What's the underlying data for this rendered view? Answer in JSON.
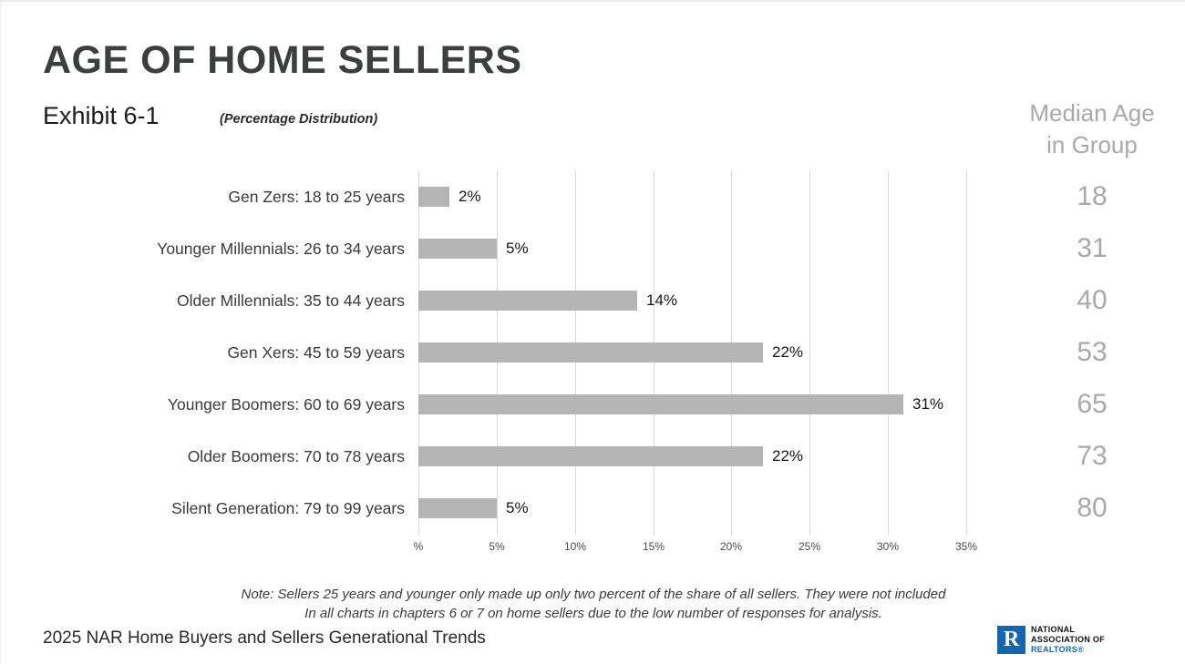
{
  "header": {
    "title": "AGE OF HOME SELLERS",
    "exhibit": "Exhibit 6-1",
    "subtitle": "(Percentage Distribution)"
  },
  "median_column": {
    "header_line1": "Median Age",
    "header_line2": "in Group"
  },
  "chart_data": {
    "type": "bar",
    "orientation": "horizontal",
    "title": "AGE OF HOME SELLERS",
    "xlabel": "",
    "ylabel": "",
    "categories": [
      "Gen Zers: 18 to 25 years",
      "Younger Millennials: 26 to 34 years",
      "Older Millennials: 35 to 44 years",
      "Gen Xers: 45 to 59 years",
      "Younger Boomers: 60 to 69 years",
      "Older Boomers: 70 to 78 years",
      "Silent Generation: 79 to 99 years"
    ],
    "values": [
      2,
      5,
      14,
      22,
      31,
      22,
      5
    ],
    "value_labels": [
      "2%",
      "5%",
      "14%",
      "22%",
      "31%",
      "22%",
      "5%"
    ],
    "median_ages": [
      "18",
      "31",
      "40",
      "53",
      "65",
      "73",
      "80"
    ],
    "x_ticks": [
      "%",
      "5%",
      "10%",
      "15%",
      "20%",
      "25%",
      "30%",
      "35%"
    ],
    "x_tick_values": [
      0,
      5,
      10,
      15,
      20,
      25,
      30,
      35
    ],
    "xlim": [
      0,
      35
    ],
    "grid": true,
    "bar_color": "#b5b5b5",
    "gridline_color": "#d9d9d9",
    "legend": "none"
  },
  "note": {
    "line1": "Note: Sellers 25 years and younger only made up only two percent of the share of all sellers. They were not included",
    "line2": "In all charts in chapters 6 or 7 on home sellers due to the low number of responses for analysis."
  },
  "footer": {
    "source": "2025 NAR Home Buyers and Sellers Generational Trends"
  },
  "logo": {
    "mark_letter": "R",
    "org_line1": "NATIONAL",
    "org_line2": "ASSOCIATION OF",
    "org_line3": "REALTORS®",
    "brand_blue": "#1666af"
  }
}
